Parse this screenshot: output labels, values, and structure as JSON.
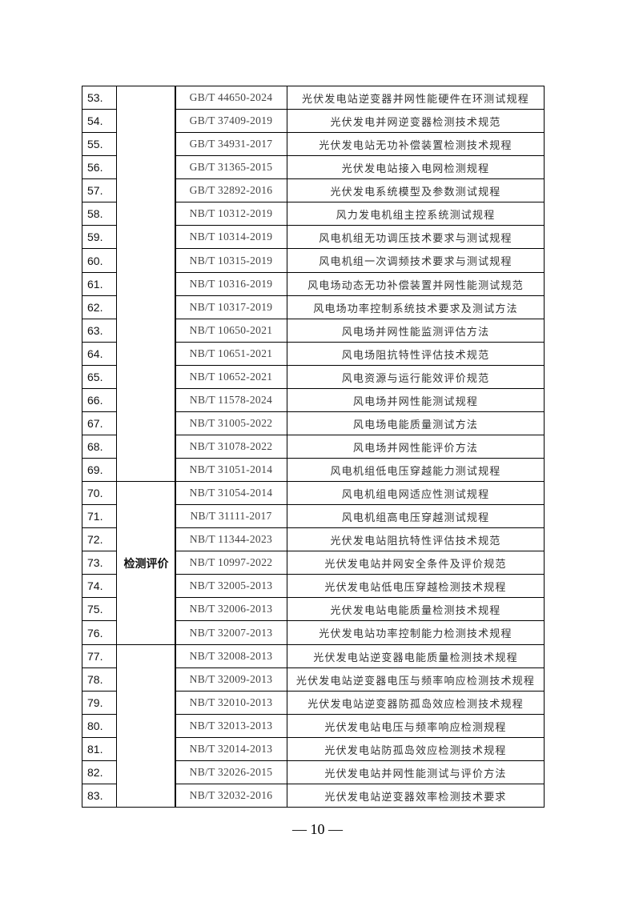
{
  "table": {
    "categories": [
      {
        "label": "",
        "start": 53,
        "end": 69
      },
      {
        "label": "检测评价",
        "start": 70,
        "end": 76
      },
      {
        "label": "",
        "start": 77,
        "end": 83
      }
    ],
    "rows": [
      {
        "no": "53.",
        "code": "GB/T 44650-2024",
        "title": "光伏发电站逆变器并网性能硬件在环测试规程"
      },
      {
        "no": "54.",
        "code": "GB/T 37409-2019",
        "title": "光伏发电并网逆变器检测技术规范"
      },
      {
        "no": "55.",
        "code": "GB/T 34931-2017",
        "title": "光伏发电站无功补偿装置检测技术规程"
      },
      {
        "no": "56.",
        "code": "GB/T 31365-2015",
        "title": "光伏发电站接入电网检测规程"
      },
      {
        "no": "57.",
        "code": "GB/T 32892-2016",
        "title": "光伏发电系统模型及参数测试规程"
      },
      {
        "no": "58.",
        "code": "NB/T 10312-2019",
        "title": "风力发电机组主控系统测试规程"
      },
      {
        "no": "59.",
        "code": "NB/T 10314-2019",
        "title": "风电机组无功调压技术要求与测试规程"
      },
      {
        "no": "60.",
        "code": "NB/T 10315-2019",
        "title": "风电机组一次调频技术要求与测试规程"
      },
      {
        "no": "61.",
        "code": "NB/T 10316-2019",
        "title": "风电场动态无功补偿装置并网性能测试规范"
      },
      {
        "no": "62.",
        "code": "NB/T 10317-2019",
        "title": "风电场功率控制系统技术要求及测试方法"
      },
      {
        "no": "63.",
        "code": "NB/T 10650-2021",
        "title": "风电场并网性能监测评估方法"
      },
      {
        "no": "64.",
        "code": "NB/T 10651-2021",
        "title": "风电场阻抗特性评估技术规范"
      },
      {
        "no": "65.",
        "code": "NB/T 10652-2021",
        "title": "风电资源与运行能效评价规范"
      },
      {
        "no": "66.",
        "code": "NB/T 11578-2024",
        "title": "风电场并网性能测试规程"
      },
      {
        "no": "67.",
        "code": "NB/T 31005-2022",
        "title": "风电场电能质量测试方法"
      },
      {
        "no": "68.",
        "code": "NB/T 31078-2022",
        "title": "风电场并网性能评价方法"
      },
      {
        "no": "69.",
        "code": "NB/T 31051-2014",
        "title": "风电机组低电压穿越能力测试规程"
      },
      {
        "no": "70.",
        "code": "NB/T 31054-2014",
        "title": "风电机组电网适应性测试规程"
      },
      {
        "no": "71.",
        "code": "NB/T 31111-2017",
        "title": "风电机组高电压穿越测试规程"
      },
      {
        "no": "72.",
        "code": "NB/T 11344-2023",
        "title": "光伏发电站阻抗特性评估技术规范"
      },
      {
        "no": "73.",
        "code": "NB/T 10997-2022",
        "title": "光伏发电站并网安全条件及评价规范"
      },
      {
        "no": "74.",
        "code": "NB/T 32005-2013",
        "title": "光伏发电站低电压穿越检测技术规程"
      },
      {
        "no": "75.",
        "code": "NB/T 32006-2013",
        "title": "光伏发电站电能质量检测技术规程"
      },
      {
        "no": "76.",
        "code": "NB/T 32007-2013",
        "title": "光伏发电站功率控制能力检测技术规程"
      },
      {
        "no": "77.",
        "code": "NB/T 32008-2013",
        "title": "光伏发电站逆变器电能质量检测技术规程"
      },
      {
        "no": "78.",
        "code": "NB/T 32009-2013",
        "title": "光伏发电站逆变器电压与频率响应检测技术规程"
      },
      {
        "no": "79.",
        "code": "NB/T 32010-2013",
        "title": "光伏发电站逆变器防孤岛效应检测技术规程"
      },
      {
        "no": "80.",
        "code": "NB/T 32013-2013",
        "title": "光伏发电站电压与频率响应检测规程"
      },
      {
        "no": "81.",
        "code": "NB/T 32014-2013",
        "title": "光伏发电站防孤岛效应检测技术规程"
      },
      {
        "no": "82.",
        "code": "NB/T 32026-2015",
        "title": "光伏发电站并网性能测试与评价方法"
      },
      {
        "no": "83.",
        "code": "NB/T 32032-2016",
        "title": "光伏发电站逆变器效率检测技术要求"
      }
    ]
  },
  "footer": {
    "page_number": "— 10 —"
  }
}
